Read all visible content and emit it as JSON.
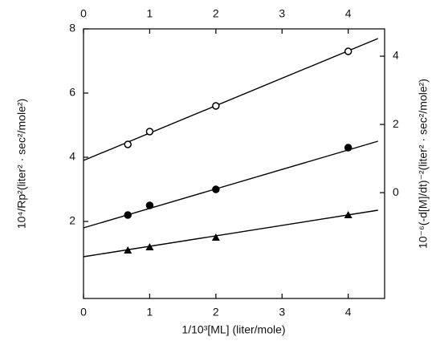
{
  "chart_data": {
    "type": "scatter",
    "x_label": "1/10³[ML] (liter/mole)",
    "y_label": "10⁴/Rp²(liter² · sec²/mole²)",
    "y2_label": "10⁻⁶(-d[M]/dt)⁻²(liter² · sec²/mole²)",
    "xlim": [
      0,
      4.55
    ],
    "xticks": [
      0,
      1,
      2,
      3,
      4
    ],
    "ylim": [
      -0.4,
      8
    ],
    "yticks": [
      2,
      4,
      6,
      8
    ],
    "y2lim": [
      -3.1,
      4.8
    ],
    "y2ticks": [
      0,
      2,
      4
    ],
    "series": [
      {
        "color": "#000000",
        "marker": "open-circle",
        "x": [
          0.67,
          1,
          2,
          4
        ],
        "values": [
          4.4,
          4.8,
          5.6,
          7.3
        ],
        "fit_x": [
          0,
          4.45
        ],
        "fit_values": [
          3.9,
          7.7
        ]
      },
      {
        "color": "#000000",
        "marker": "filled-circle",
        "x": [
          0.67,
          1,
          2,
          4
        ],
        "values": [
          2.2,
          2.5,
          3.0,
          4.3
        ],
        "fit_x": [
          0,
          4.45
        ],
        "fit_values": [
          1.8,
          4.5
        ]
      },
      {
        "color": "#000000",
        "marker": "filled-triangle",
        "x": [
          0.67,
          1,
          2,
          4
        ],
        "values": [
          1.1,
          1.2,
          1.5,
          2.2
        ],
        "fit_x": [
          0,
          4.45
        ],
        "fit_values": [
          0.9,
          2.35
        ]
      }
    ]
  }
}
